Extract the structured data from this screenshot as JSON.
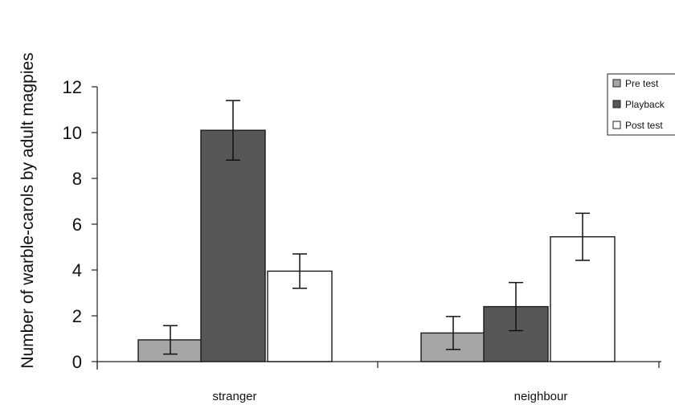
{
  "chart_data": {
    "type": "bar",
    "title": "",
    "xlabel": "",
    "ylabel": "Number of warble-carols by adult magpies",
    "categories": [
      "stranger",
      "neighbour"
    ],
    "ylim": [
      0,
      12
    ],
    "yticks": [
      0,
      2,
      4,
      6,
      8,
      10,
      12
    ],
    "legend_position": "top-right",
    "grid": false,
    "series": [
      {
        "name": "Pre test",
        "color": "#a6a6a6",
        "values": [
          0.95,
          1.25
        ],
        "errors": [
          0.62,
          0.72
        ]
      },
      {
        "name": "Playback",
        "color": "#575757",
        "values": [
          10.1,
          2.4
        ],
        "errors": [
          1.3,
          1.05
        ]
      },
      {
        "name": "Post test",
        "color": "#ffffff",
        "values": [
          3.95,
          5.45
        ],
        "errors": [
          0.75,
          1.03
        ]
      }
    ]
  }
}
